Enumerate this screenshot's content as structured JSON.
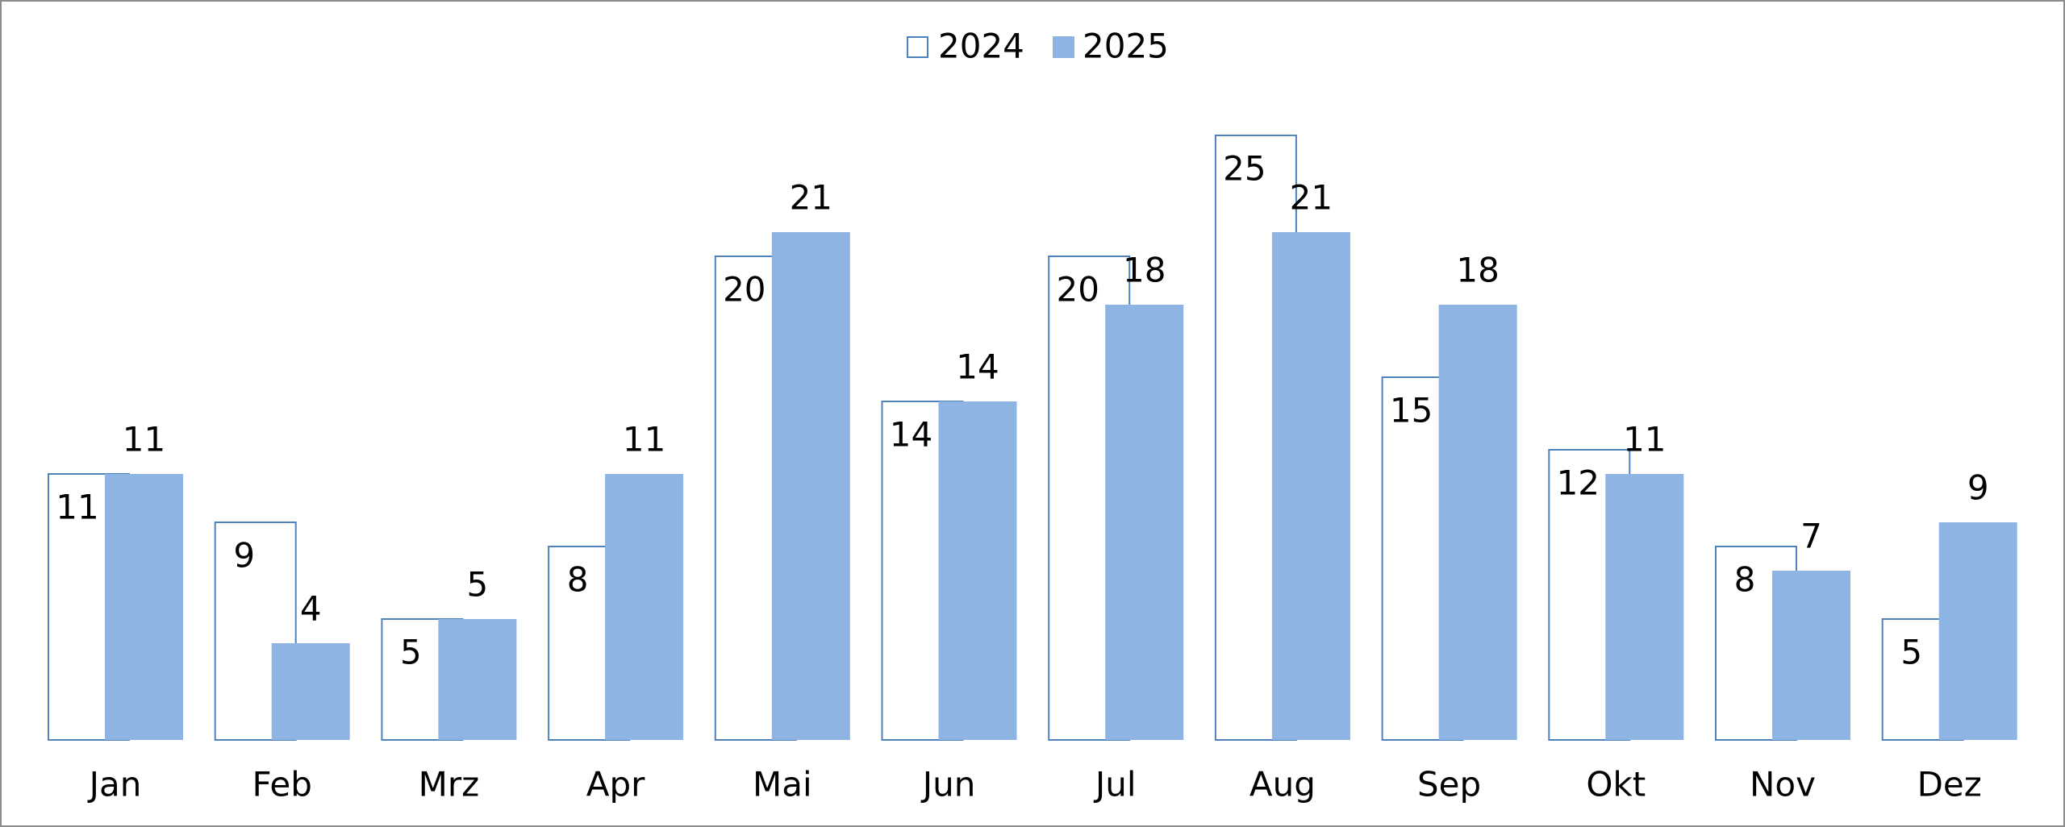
{
  "chart_data": {
    "type": "bar",
    "categories": [
      "Jan",
      "Feb",
      "Mrz",
      "Apr",
      "Mai",
      "Jun",
      "Jul",
      "Aug",
      "Sep",
      "Okt",
      "Nov",
      "Dez"
    ],
    "series": [
      {
        "name": "2024",
        "color": "#ffffff",
        "values": [
          11,
          9,
          5,
          8,
          20,
          14,
          20,
          25,
          15,
          12,
          8,
          5
        ]
      },
      {
        "name": "2025",
        "color": "#8eb4e3",
        "values": [
          11,
          4,
          5,
          11,
          21,
          14,
          18,
          21,
          18,
          11,
          7,
          9
        ]
      }
    ],
    "legend": "top"
  }
}
